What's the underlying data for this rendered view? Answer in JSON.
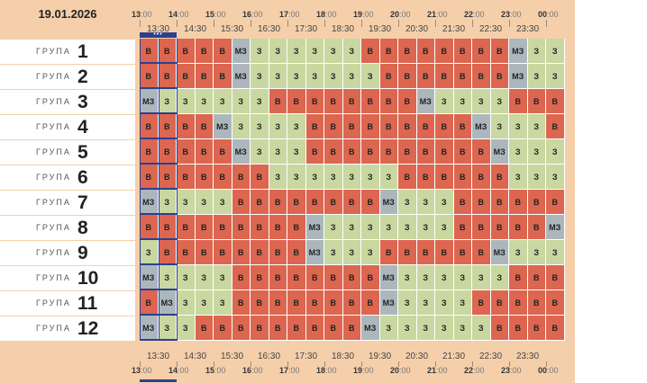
{
  "date": "19.01.2026",
  "hours": [
    {
      "h": "13",
      "m": ":00"
    },
    {
      "h": "14",
      "m": ":00"
    },
    {
      "h": "15",
      "m": ":00"
    },
    {
      "h": "16",
      "m": ":00"
    },
    {
      "h": "17",
      "m": ":00"
    },
    {
      "h": "18",
      "m": ":00"
    },
    {
      "h": "19",
      "m": ":00"
    },
    {
      "h": "20",
      "m": ":00"
    },
    {
      "h": "21",
      "m": ":00"
    },
    {
      "h": "22",
      "m": ":00"
    },
    {
      "h": "23",
      "m": ":00"
    },
    {
      "h": "00",
      "m": ":00"
    }
  ],
  "half_hours": [
    "13:30",
    "14:30",
    "15:30",
    "16:30",
    "17:30",
    "18:30",
    "19:30",
    "20:30",
    "21:30",
    "22:30",
    "23:30"
  ],
  "group_word": "ГРУПА",
  "status_labels": {
    "B": "В",
    "Z": "З",
    "M": "МЗ"
  },
  "colors": {
    "off": "#dc6650",
    "on": "#c9d7a0",
    "maybe": "#acb7bd",
    "current": "#2c3f8f"
  },
  "groups": [
    {
      "number": "1",
      "slots": "BBBBBMZZZZZZBBBBBBBBMZZ"
    },
    {
      "number": "2",
      "slots": "BBBBBMZZZZZZZBBBBBBBMZZ"
    },
    {
      "number": "3",
      "slots": "MZZZZZZBBBBBBBBMZZZZBBB"
    },
    {
      "number": "4",
      "slots": "BBBBMZZZZBBBBBBBBBMZZZB"
    },
    {
      "number": "5",
      "slots": "BBBBBMZZZBBBBBBBBBBMZZZ"
    },
    {
      "number": "6",
      "slots": "BBBBBBBZZZZZZZBBBBBBZZZ"
    },
    {
      "number": "7",
      "slots": "MZZZZBBBBBBBBMZZZBBBBBB"
    },
    {
      "number": "8",
      "slots": "BBBBBBBBBMZZZZZZZBBBBBM"
    },
    {
      "number": "9",
      "slots": "ZBBBBBBBBMZZZBBBBBBMZZZ"
    },
    {
      "number": "10",
      "slots": "MZZZZBBBBBBBBMZZZZZZBBB"
    },
    {
      "number": "11",
      "slots": "BMZZZBBBBBBBBMZZZZBBBBB"
    },
    {
      "number": "12",
      "slots": "MZZBBBBBBBBBMZZZZZZBBBB"
    }
  ]
}
